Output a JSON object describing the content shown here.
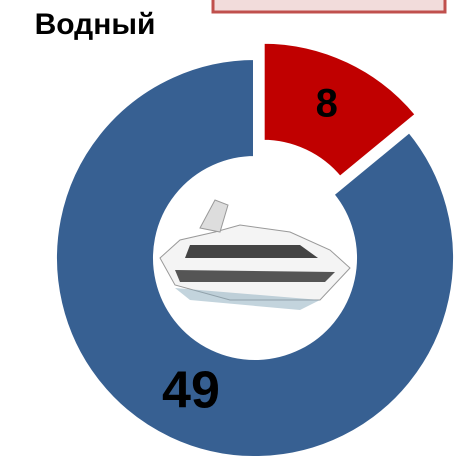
{
  "chart_data": {
    "type": "donut",
    "title": "Водный",
    "categories": [
      null,
      null
    ],
    "values": [
      8,
      49
    ],
    "colors": [
      "#c00000",
      "#376092"
    ]
  }
}
